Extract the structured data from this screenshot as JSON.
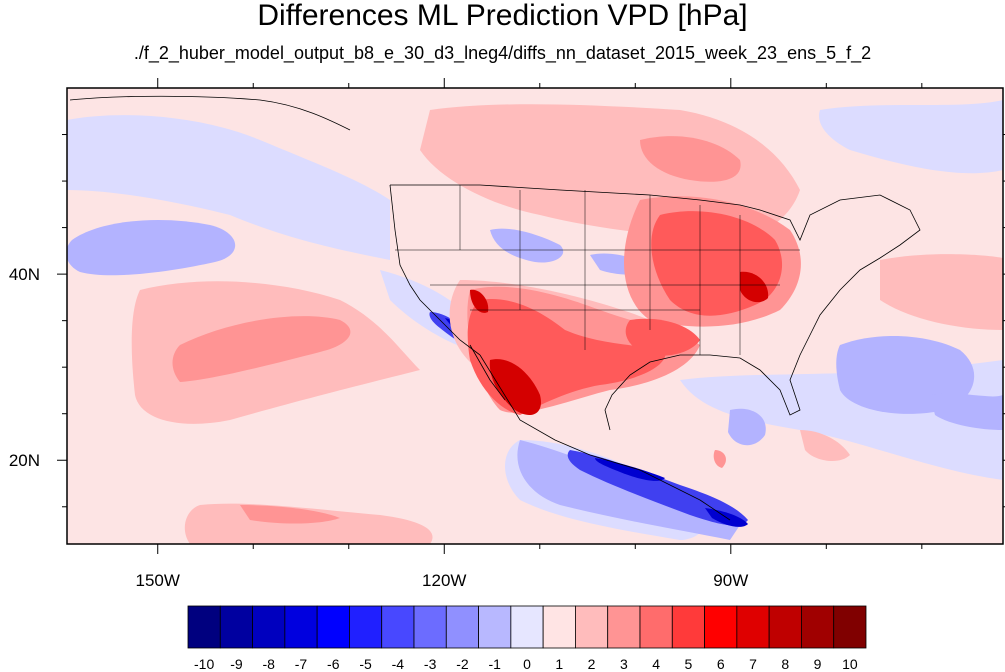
{
  "title": "Differences ML Prediction VPD [hPa]",
  "subtitle": "./f_2_huber_model_output_b8_e_30_d3_lneg4/diffs_nn_dataset_2015_week_23_ens_5_f_2",
  "map": {
    "lon_range": [
      -159.5,
      -61.5
    ],
    "lat_range": [
      11,
      60
    ],
    "x_ticks": [
      {
        "lon": -150,
        "label": "150W"
      },
      {
        "lon": -120,
        "label": "120W"
      },
      {
        "lon": -90,
        "label": "90W"
      }
    ],
    "y_ticks": [
      {
        "lat": 40,
        "label": "40N"
      },
      {
        "lat": 20,
        "label": "20N"
      }
    ],
    "background_color": "#fde4e4"
  },
  "colorbar": {
    "labels": [
      "-10",
      "-9",
      "-8",
      "-7",
      "-6",
      "-5",
      "-4",
      "-3",
      "-2",
      "-1",
      "0",
      "1",
      "2",
      "3",
      "4",
      "5",
      "6",
      "7",
      "8",
      "9",
      "10"
    ],
    "colors": [
      "#00007f",
      "#0000a0",
      "#0000bf",
      "#0000df",
      "#0000ff",
      "#2020ff",
      "#4848ff",
      "#6c6cff",
      "#9090ff",
      "#b8b8ff",
      "#e6e6ff",
      "#ffe4e4",
      "#ffbcbc",
      "#ff9494",
      "#ff6c6c",
      "#ff3a3a",
      "#ff0000",
      "#df0000",
      "#bf0000",
      "#a00000",
      "#800000"
    ]
  }
}
